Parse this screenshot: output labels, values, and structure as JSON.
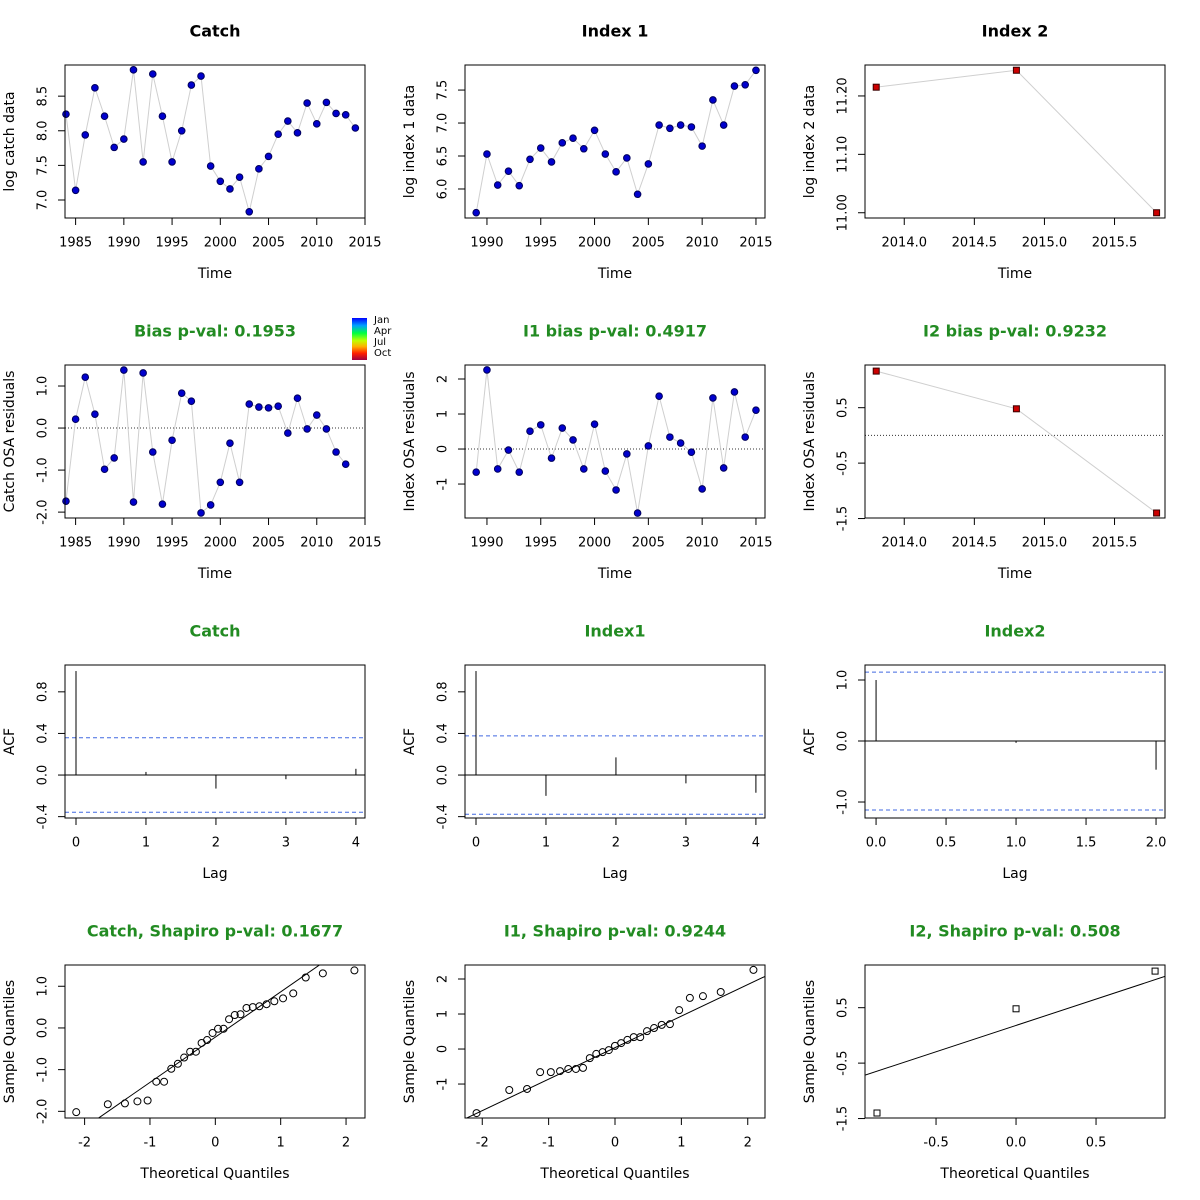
{
  "chart_data": [
    {
      "type": "line",
      "title": "Catch",
      "title_color": "#000000",
      "xlabel": "Time",
      "ylabel": "log catch data",
      "color": "#0000cd",
      "marker": "circle",
      "x": [
        1984,
        1985,
        1986,
        1987,
        1988,
        1989,
        1990,
        1991,
        1992,
        1993,
        1994,
        1995,
        1996,
        1997,
        1998,
        1999,
        2000,
        2001,
        2002,
        2003,
        2004,
        2005,
        2006,
        2007,
        2008,
        2009,
        2010,
        2011,
        2012,
        2013,
        2014
      ],
      "values": [
        8.24,
        7.14,
        7.94,
        8.62,
        8.21,
        7.76,
        7.88,
        8.88,
        7.55,
        8.82,
        8.21,
        7.55,
        8.0,
        8.66,
        8.79,
        7.49,
        7.27,
        7.16,
        7.33,
        6.83,
        7.45,
        7.63,
        7.95,
        8.14,
        7.97,
        8.4,
        8.1,
        8.41,
        8.25,
        8.23,
        8.04
      ],
      "xlim": [
        1983.9,
        2015
      ],
      "ylim": [
        6.74,
        8.95
      ],
      "xticks": [
        1985,
        1990,
        1995,
        2000,
        2005,
        2010,
        2015
      ],
      "yticks": [
        {
          "value": 7,
          "label": "7.0"
        },
        7.5,
        {
          "value": 8,
          "label": "8.0"
        },
        8.5
      ]
    },
    {
      "type": "line",
      "title": "Index 1",
      "title_color": "#000000",
      "xlabel": "Time",
      "ylabel": "log index 1 data",
      "color": "#0000cd",
      "marker": "circle",
      "x": [
        1989,
        1990,
        1991,
        1992,
        1993,
        1994,
        1995,
        1996,
        1997,
        1998,
        1999,
        2000,
        2001,
        2002,
        2003,
        2004,
        2005,
        2006,
        2007,
        2008,
        2009,
        2010,
        2011,
        2012,
        2013,
        2014,
        2015
      ],
      "values": [
        5.64,
        6.53,
        6.06,
        6.27,
        6.05,
        6.45,
        6.62,
        6.41,
        6.7,
        6.77,
        6.61,
        6.89,
        6.53,
        6.26,
        6.47,
        5.92,
        6.38,
        6.97,
        6.92,
        6.97,
        6.94,
        6.65,
        7.35,
        6.97,
        7.56,
        7.58,
        7.8
      ],
      "xlim": [
        1987.96,
        2015.84
      ],
      "ylim": [
        5.56,
        7.88
      ],
      "xticks": [
        1990,
        1995,
        2000,
        2005,
        2010,
        2015
      ],
      "yticks": [
        {
          "value": 6,
          "label": "6.0"
        },
        6.5,
        {
          "value": 7,
          "label": "7.0"
        },
        7.5
      ]
    },
    {
      "type": "line",
      "title": "Index 2",
      "title_color": "#000000",
      "xlabel": "Time",
      "ylabel": "log index 2 data",
      "color": "#cc0000",
      "marker": "square",
      "x": [
        2013.8,
        2014.8,
        2015.8
      ],
      "values": [
        11.215,
        11.244,
        11.0
      ],
      "xlim": [
        2013.72,
        2015.86
      ],
      "ylim": [
        10.991,
        11.253
      ],
      "xticks": [
        {
          "value": 2014,
          "label": "2014.0"
        },
        2014.5,
        {
          "value": 2015,
          "label": "2015.0"
        },
        2015.5
      ],
      "yticks": [
        {
          "value": 11,
          "label": "11.00"
        },
        {
          "value": 11.1,
          "label": "11.10"
        },
        {
          "value": 11.2,
          "label": "11.20"
        }
      ]
    },
    {
      "type": "line",
      "title": "Bias p-val: 0.1953",
      "title_color": "#228b22",
      "xlabel": "Time",
      "ylabel": "Catch OSA residuals",
      "color": "#0000cd",
      "marker": "circle",
      "hline": 0,
      "month_legend": [
        "Jan",
        "Apr",
        "Jul",
        "Oct"
      ],
      "x": [
        1984,
        1985,
        1986,
        1987,
        1988,
        1989,
        1990,
        1991,
        1992,
        1993,
        1994,
        1995,
        1996,
        1997,
        1998,
        1999,
        2000,
        2001,
        2002,
        2003,
        2004,
        2005,
        2006,
        2007,
        2008,
        2009,
        2010,
        2011,
        2012,
        2013
      ],
      "values": [
        -1.74,
        0.21,
        1.21,
        0.33,
        -0.98,
        -0.71,
        1.38,
        -1.76,
        1.31,
        -0.57,
        -1.81,
        -0.29,
        0.83,
        0.64,
        -2.02,
        -1.83,
        -1.29,
        -0.36,
        -1.29,
        0.57,
        0.5,
        0.48,
        0.52,
        -0.12,
        0.71,
        -0.02,
        0.31,
        -0.02,
        -0.57,
        -0.86
      ],
      "xlim": [
        1983.9,
        2015
      ],
      "ylim": [
        -2.14,
        1.5
      ],
      "xticks": [
        1985,
        1990,
        1995,
        2000,
        2005,
        2010,
        2015
      ],
      "yticks": [
        {
          "value": -2,
          "label": "-2.0"
        },
        {
          "value": -1,
          "label": "-1.0"
        },
        {
          "value": 0,
          "label": "0.0"
        },
        {
          "value": 1,
          "label": "1.0"
        }
      ]
    },
    {
      "type": "line",
      "title": "I1 bias p-val: 0.4917",
      "title_color": "#228b22",
      "xlabel": "Time",
      "ylabel": "Index OSA residuals",
      "color": "#0000cd",
      "marker": "circle",
      "hline": 0,
      "x": [
        1989,
        1990,
        1991,
        1992,
        1993,
        1994,
        1995,
        1996,
        1997,
        1998,
        1999,
        2000,
        2001,
        2002,
        2003,
        2004,
        2005,
        2006,
        2007,
        2008,
        2009,
        2010,
        2011,
        2012,
        2013,
        2014,
        2015
      ],
      "values": [
        -0.66,
        2.26,
        -0.57,
        -0.03,
        -0.66,
        0.51,
        0.69,
        -0.26,
        0.6,
        0.26,
        -0.57,
        0.71,
        -0.63,
        -1.17,
        -0.14,
        -1.83,
        0.09,
        1.51,
        0.34,
        0.17,
        -0.09,
        -1.14,
        1.46,
        -0.54,
        1.63,
        0.34,
        1.11
      ],
      "xlim": [
        1987.96,
        2015.84
      ],
      "ylim": [
        -1.97,
        2.4
      ],
      "xticks": [
        1990,
        1995,
        2000,
        2005,
        2010,
        2015
      ],
      "yticks": [
        -1,
        0,
        1,
        2
      ]
    },
    {
      "type": "line",
      "title": "I2 bias p-val: 0.9232",
      "title_color": "#228b22",
      "xlabel": "Time",
      "ylabel": "Index OSA residuals",
      "color": "#cc0000",
      "marker": "square",
      "hline": 0,
      "x": [
        2013.8,
        2014.8,
        2015.8
      ],
      "values": [
        1.16,
        0.48,
        -1.4
      ],
      "xlim": [
        2013.72,
        2015.86
      ],
      "ylim": [
        -1.49,
        1.27
      ],
      "xticks": [
        {
          "value": 2014,
          "label": "2014.0"
        },
        2014.5,
        {
          "value": 2015,
          "label": "2015.0"
        },
        2015.5
      ],
      "yticks": [
        -1.5,
        -0.5,
        0.5
      ]
    },
    {
      "type": "acf",
      "title": "Catch",
      "title_color": "#228b22",
      "xlabel": "Lag",
      "ylabel": "ACF",
      "color": "#000000",
      "ci_color": "#4169e1",
      "hline": 0,
      "ci": 0.358,
      "x": [
        0,
        1,
        2,
        3,
        4
      ],
      "values": [
        1.0,
        0.03,
        -0.13,
        -0.04,
        0.06
      ],
      "xlim": [
        -0.157,
        4.13
      ],
      "ylim": [
        -0.413,
        1.058
      ],
      "xticks": [
        0,
        1,
        2,
        3,
        4
      ],
      "yticks": [
        -0.4,
        {
          "value": 0,
          "label": "0.0"
        },
        0.4,
        0.8
      ]
    },
    {
      "type": "acf",
      "title": "Index1",
      "title_color": "#228b22",
      "xlabel": "Lag",
      "ylabel": "ACF",
      "color": "#000000",
      "ci_color": "#4169e1",
      "hline": 0,
      "ci": 0.377,
      "x": [
        0,
        1,
        2,
        3,
        4
      ],
      "values": [
        1.0,
        -0.2,
        0.17,
        -0.08,
        -0.17
      ],
      "xlim": [
        -0.157,
        4.13
      ],
      "ylim": [
        -0.413,
        1.058
      ],
      "xticks": [
        0,
        1,
        2,
        3,
        4
      ],
      "yticks": [
        -0.4,
        {
          "value": 0,
          "label": "0.0"
        },
        0.4,
        0.8
      ]
    },
    {
      "type": "acf",
      "title": "Index2",
      "title_color": "#228b22",
      "xlabel": "Lag",
      "ylabel": "ACF",
      "color": "#000000",
      "ci_color": "#4169e1",
      "hline": 0,
      "ci": 1.13,
      "x": [
        0,
        1,
        2
      ],
      "values": [
        1.0,
        -0.03,
        -0.47
      ],
      "xlim": [
        -0.079,
        2.064
      ],
      "ylim": [
        -1.262,
        1.246
      ],
      "xticks": [
        {
          "value": 0,
          "label": "0.0"
        },
        0.5,
        {
          "value": 1,
          "label": "1.0"
        },
        1.5,
        {
          "value": 2,
          "label": "2.0"
        }
      ],
      "yticks": [
        {
          "value": -1,
          "label": "-1.0"
        },
        {
          "value": 0,
          "label": "0.0"
        },
        {
          "value": 1,
          "label": "1.0"
        }
      ]
    },
    {
      "type": "qq",
      "title": "Catch, Shapiro p-val: 0.1677",
      "title_color": "#228b22",
      "xlabel": "Theoretical Quantiles",
      "ylabel": "Sample Quantiles",
      "color": "#000000",
      "marker": "circle",
      "x": [
        -2.128,
        -1.645,
        -1.383,
        -1.192,
        -1.036,
        -0.903,
        -0.784,
        -0.674,
        -0.573,
        -0.477,
        -0.385,
        -0.297,
        -0.21,
        -0.126,
        -0.042,
        0.042,
        0.126,
        0.21,
        0.297,
        0.385,
        0.477,
        0.573,
        0.674,
        0.784,
        0.903,
        1.036,
        1.192,
        1.383,
        1.645,
        2.128
      ],
      "values": [
        -2.02,
        -1.83,
        -1.81,
        -1.76,
        -1.74,
        -1.29,
        -1.29,
        -0.98,
        -0.86,
        -0.71,
        -0.57,
        -0.57,
        -0.36,
        -0.29,
        -0.12,
        -0.02,
        -0.02,
        0.21,
        0.31,
        0.33,
        0.48,
        0.5,
        0.52,
        0.57,
        0.64,
        0.71,
        0.83,
        1.21,
        1.31,
        1.38
      ],
      "qqline": {
        "intercept": -0.22,
        "slope": 1.086
      },
      "xlim": [
        -2.3,
        2.29
      ],
      "ylim": [
        -2.16,
        1.51
      ],
      "xticks": [
        -2,
        -1,
        0,
        1,
        2
      ],
      "yticks": [
        {
          "value": -2,
          "label": "-2.0"
        },
        {
          "value": -1,
          "label": "-1.0"
        },
        {
          "value": 0,
          "label": "0.0"
        },
        {
          "value": 1,
          "label": "1.0"
        }
      ]
    },
    {
      "type": "qq",
      "title": "I1, Shapiro p-val: 0.9244",
      "title_color": "#228b22",
      "xlabel": "Theoretical Quantiles",
      "ylabel": "Sample Quantiles",
      "color": "#000000",
      "marker": "circle",
      "x": [
        -2.086,
        -1.593,
        -1.325,
        -1.128,
        -0.967,
        -0.828,
        -0.704,
        -0.589,
        -0.482,
        -0.38,
        -0.282,
        -0.187,
        -0.093,
        0,
        0.093,
        0.187,
        0.282,
        0.38,
        0.482,
        0.589,
        0.704,
        0.828,
        0.967,
        1.128,
        1.325,
        1.593,
        2.086
      ],
      "values": [
        -1.83,
        -1.17,
        -1.14,
        -0.66,
        -0.66,
        -0.63,
        -0.57,
        -0.57,
        -0.54,
        -0.26,
        -0.14,
        -0.09,
        -0.03,
        0.09,
        0.17,
        0.26,
        0.34,
        0.34,
        0.51,
        0.6,
        0.69,
        0.71,
        1.11,
        1.46,
        1.51,
        1.63,
        2.26
      ],
      "qqline": {
        "intercept": 0.04,
        "slope": 0.9
      },
      "xlim": [
        -2.26,
        2.26
      ],
      "ylim": [
        -1.97,
        2.4
      ],
      "xticks": [
        -2,
        -1,
        0,
        1,
        2
      ],
      "yticks": [
        -1,
        0,
        1,
        2
      ]
    },
    {
      "type": "qq",
      "title": "I2, Shapiro p-val: 0.508",
      "title_color": "#228b22",
      "xlabel": "Theoretical Quantiles",
      "ylabel": "Sample Quantiles",
      "color": "#000000",
      "marker": "square",
      "x": [
        -0.869,
        0,
        0.869
      ],
      "values": [
        -1.4,
        0.48,
        1.16
      ],
      "qqline": {
        "intercept": 0.18,
        "slope": 0.95
      },
      "xlim": [
        -0.944,
        0.931
      ],
      "ylim": [
        -1.49,
        1.27
      ],
      "xticks": [
        -0.5,
        {
          "value": 0,
          "label": "0.0"
        },
        0.5
      ],
      "yticks": [
        -1.5,
        -0.5,
        0.5
      ]
    }
  ]
}
